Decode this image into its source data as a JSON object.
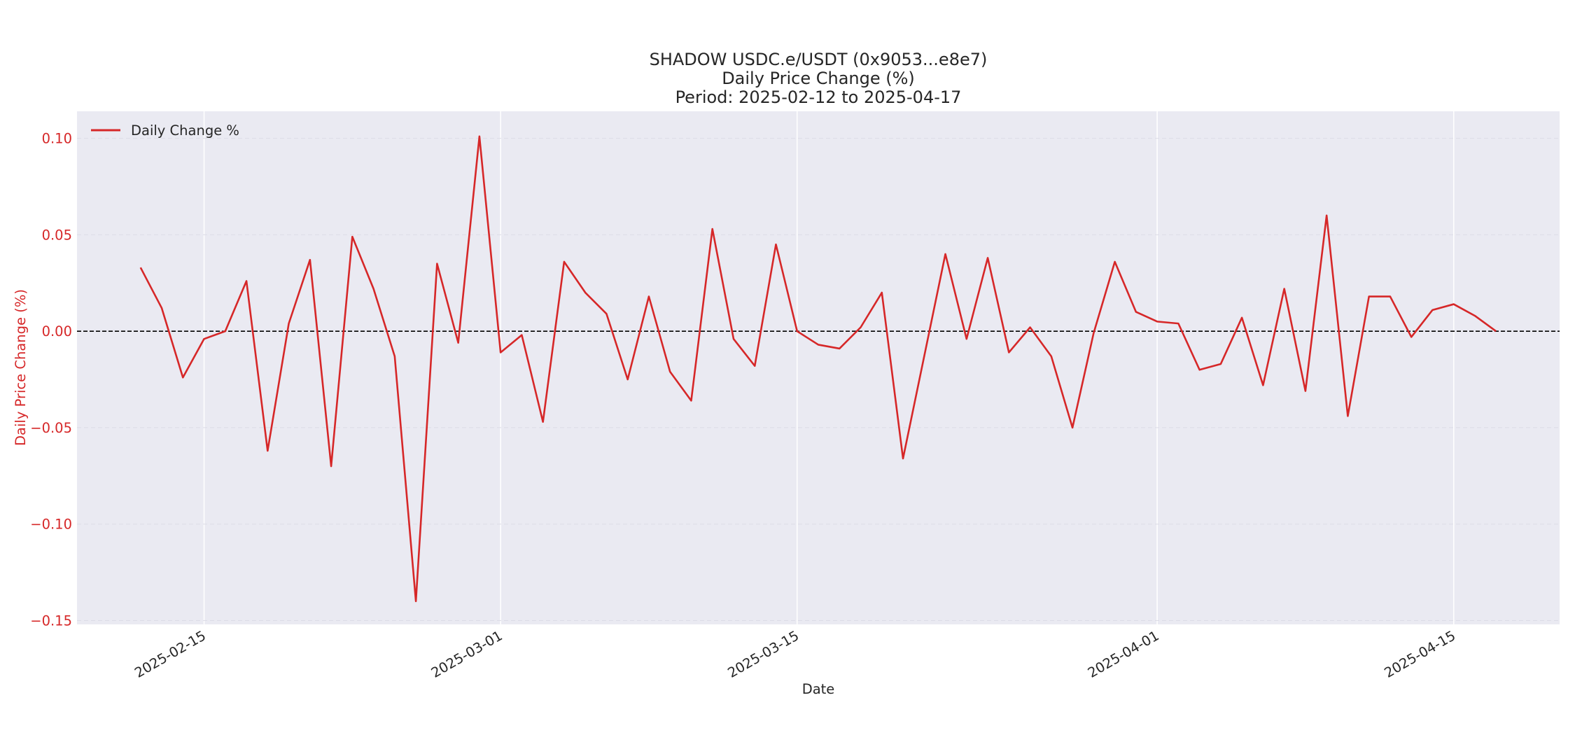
{
  "chart_data": {
    "type": "line",
    "title": [
      "SHADOW USDC.e/USDT (0x9053...e8e7)",
      "Daily Price Change (%)",
      "Period: 2025-02-12 to 2025-04-17"
    ],
    "xlabel": "Date",
    "ylabel": "Daily Price Change (%)",
    "x_start": "2025-02-12",
    "x_end": "2025-04-17",
    "xlim": [
      "2025-02-09",
      "2025-04-20"
    ],
    "ylim": [
      -0.152,
      0.114
    ],
    "x_ticks": [
      "2025-02-15",
      "2025-03-01",
      "2025-03-15",
      "2025-04-01",
      "2025-04-15"
    ],
    "y_ticks": [
      0.1,
      0.05,
      0.0,
      -0.05,
      -0.1,
      -0.15
    ],
    "y_tick_labels": [
      "0.10",
      "0.05",
      "0.00",
      "−0.05",
      "−0.10",
      "−0.15"
    ],
    "reference_line": {
      "y": 0,
      "style": "dashed",
      "color": "#000000"
    },
    "grid": true,
    "legend": {
      "position": "top-left",
      "entries": [
        "Daily Change %"
      ]
    },
    "colors": {
      "line": "#d62728",
      "plot_bg": "#eaeaf2",
      "ylabel": "#d62728"
    },
    "series": [
      {
        "name": "Daily Change %",
        "values": [
          0.033,
          0.012,
          -0.024,
          -0.004,
          0.0,
          0.026,
          -0.062,
          0.004,
          0.037,
          -0.07,
          0.049,
          0.022,
          -0.013,
          -0.14,
          0.035,
          -0.006,
          0.101,
          -0.011,
          -0.002,
          -0.047,
          0.036,
          0.02,
          0.009,
          -0.025,
          0.018,
          -0.021,
          -0.036,
          0.053,
          -0.004,
          -0.018,
          0.045,
          0.0,
          -0.007,
          -0.009,
          0.002,
          0.02,
          -0.066,
          -0.013,
          0.04,
          -0.004,
          0.038,
          -0.011,
          0.002,
          -0.013,
          -0.05,
          -0.001,
          0.036,
          0.01,
          0.005,
          0.004,
          -0.02,
          -0.017,
          0.007,
          -0.028,
          0.022,
          -0.031,
          0.06,
          -0.044,
          0.018,
          0.018,
          -0.003,
          0.011,
          0.014,
          0.008,
          0.0
        ]
      }
    ]
  }
}
